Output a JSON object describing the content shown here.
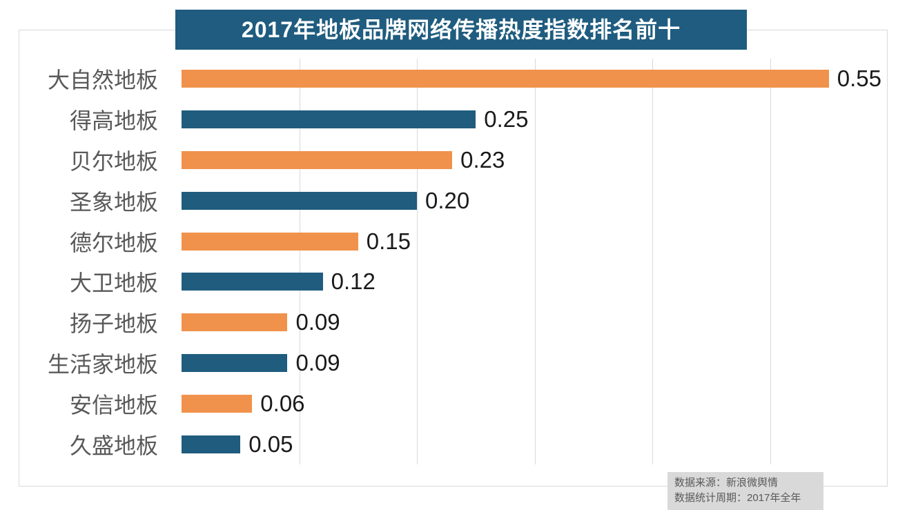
{
  "chart_data": {
    "type": "bar",
    "orientation": "horizontal",
    "title": "2017年地板品牌网络传播热度指数排名前十",
    "categories": [
      "大自然地板",
      "得高地板",
      "贝尔地板",
      "圣象地板",
      "德尔地板",
      "大卫地板",
      "扬子地板",
      "生活家地板",
      "安信地板",
      "久盛地板"
    ],
    "values": [
      0.55,
      0.25,
      0.23,
      0.2,
      0.15,
      0.12,
      0.09,
      0.09,
      0.06,
      0.05
    ],
    "value_labels": [
      "0.55",
      "0.25",
      "0.23",
      "0.20",
      "0.15",
      "0.12",
      "0.09",
      "0.09",
      "0.06",
      "0.05"
    ],
    "xlabel": "",
    "ylabel": "",
    "xlim": [
      0,
      0.6
    ],
    "grid_interval": 0.1,
    "grid": "on",
    "legend": "none"
  },
  "footer": {
    "line1": "数据来源：新浪微舆情",
    "line2": "数据统计周期：2017年全年"
  },
  "colors": {
    "orange_bar": "#F0924B",
    "teal_bar": "#1F5C7E",
    "title_bg": "#1F5C7F",
    "title_text": "#FFFFFF",
    "gridline": "#D9D9D9",
    "frame_border": "#D9D9D9",
    "category_label": "#595959",
    "value_label": "#1A1A1A",
    "source_bg": "#D9D9D9",
    "source_text": "#595959"
  }
}
